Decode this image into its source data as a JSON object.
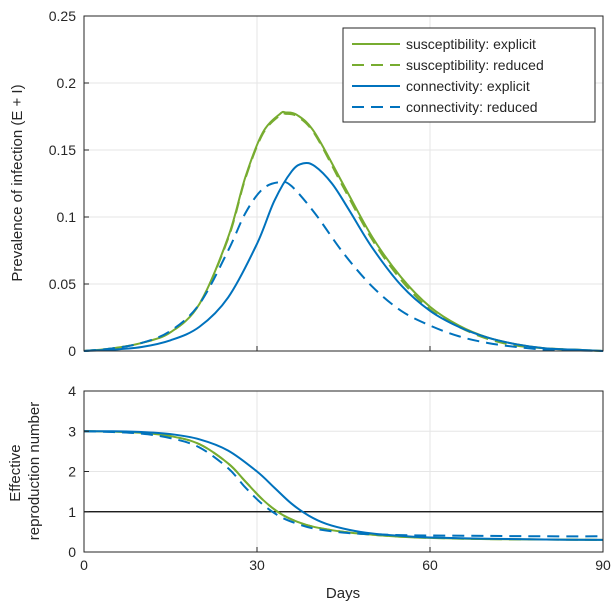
{
  "chart_data": [
    {
      "type": "line",
      "xlabel": "",
      "ylabel": "Prevalence of infection (E + I)",
      "xlim": [
        0,
        90
      ],
      "ylim": [
        0,
        0.25
      ],
      "xticks": [
        0,
        30,
        60,
        90
      ],
      "yticks": [
        0,
        0.05,
        0.1,
        0.15,
        0.2,
        0.25
      ],
      "ytick_labels": [
        "0",
        "0.05",
        "0.1",
        "0.15",
        "0.2",
        "0.25"
      ],
      "xtick_labels": [
        "",
        "",
        "",
        ""
      ],
      "grid": true,
      "legend_position": "top-right",
      "series": [
        {
          "name": "susceptibility: explicit",
          "color": "#77ac30",
          "dash": "solid",
          "x": [
            0,
            5,
            10,
            15,
            20,
            25,
            28,
            31,
            34,
            35,
            37,
            40,
            45,
            50,
            55,
            60,
            65,
            70,
            75,
            80,
            85,
            90
          ],
          "y": [
            0.0,
            0.002,
            0.006,
            0.014,
            0.035,
            0.085,
            0.13,
            0.163,
            0.177,
            0.178,
            0.176,
            0.163,
            0.124,
            0.085,
            0.055,
            0.033,
            0.019,
            0.01,
            0.005,
            0.002,
            0.001,
            0.0
          ]
        },
        {
          "name": "susceptibility: reduced",
          "color": "#77ac30",
          "dash": "dashed",
          "x": [
            0,
            5,
            10,
            15,
            20,
            25,
            28,
            31,
            34,
            35,
            37,
            40,
            45,
            50,
            55,
            60,
            65,
            70,
            75,
            80,
            85,
            90
          ],
          "y": [
            0.0,
            0.002,
            0.006,
            0.014,
            0.035,
            0.084,
            0.129,
            0.162,
            0.176,
            0.177,
            0.175,
            0.162,
            0.122,
            0.083,
            0.053,
            0.031,
            0.018,
            0.009,
            0.004,
            0.002,
            0.001,
            0.0
          ]
        },
        {
          "name": "connectivity: explicit",
          "color": "#0072bd",
          "dash": "solid",
          "x": [
            0,
            5,
            10,
            15,
            20,
            25,
            30,
            33,
            36,
            38,
            40,
            43,
            46,
            50,
            55,
            60,
            65,
            70,
            75,
            80,
            85,
            90
          ],
          "y": [
            0.0,
            0.001,
            0.003,
            0.008,
            0.018,
            0.04,
            0.08,
            0.112,
            0.134,
            0.14,
            0.138,
            0.125,
            0.105,
            0.077,
            0.049,
            0.03,
            0.018,
            0.01,
            0.005,
            0.002,
            0.001,
            0.0
          ]
        },
        {
          "name": "connectivity: reduced",
          "color": "#0072bd",
          "dash": "dashed",
          "x": [
            0,
            5,
            10,
            15,
            20,
            25,
            28,
            31,
            34,
            36,
            40,
            45,
            50,
            55,
            60,
            65,
            70,
            75,
            80,
            85,
            90
          ],
          "y": [
            0.0,
            0.002,
            0.006,
            0.015,
            0.035,
            0.075,
            0.103,
            0.121,
            0.126,
            0.123,
            0.103,
            0.073,
            0.048,
            0.03,
            0.019,
            0.011,
            0.006,
            0.003,
            0.001,
            0.0005,
            0.0
          ]
        }
      ]
    },
    {
      "type": "line",
      "xlabel": "Days",
      "ylabel": "Effective reproduction number",
      "ylabel_lines": [
        "Effective",
        "reproduction number"
      ],
      "xlim": [
        0,
        90
      ],
      "ylim": [
        0,
        4
      ],
      "xticks": [
        0,
        30,
        60,
        90
      ],
      "xtick_labels": [
        "0",
        "30",
        "60",
        "90"
      ],
      "yticks": [
        0,
        1,
        2,
        3,
        4
      ],
      "ytick_labels": [
        "0",
        "1",
        "2",
        "3",
        "4"
      ],
      "grid": true,
      "reference_line": {
        "y": 1,
        "color": "#000000"
      },
      "series": [
        {
          "name": "susceptibility: explicit",
          "color": "#77ac30",
          "dash": "solid",
          "x": [
            0,
            5,
            10,
            15,
            20,
            25,
            28,
            31,
            34,
            37,
            40,
            45,
            50,
            55,
            60,
            70,
            80,
            90
          ],
          "y": [
            3.0,
            2.99,
            2.96,
            2.88,
            2.68,
            2.2,
            1.75,
            1.3,
            0.96,
            0.75,
            0.62,
            0.5,
            0.43,
            0.38,
            0.35,
            0.32,
            0.31,
            0.3
          ]
        },
        {
          "name": "susceptibility: reduced",
          "color": "#77ac30",
          "dash": "dashed",
          "x": [
            0,
            5,
            10,
            15,
            20,
            25,
            28,
            31,
            34,
            37,
            40,
            45,
            50,
            55,
            60,
            70,
            80,
            90
          ],
          "y": [
            3.0,
            2.99,
            2.96,
            2.88,
            2.68,
            2.2,
            1.75,
            1.3,
            0.96,
            0.75,
            0.62,
            0.5,
            0.43,
            0.38,
            0.35,
            0.32,
            0.31,
            0.3
          ]
        },
        {
          "name": "connectivity: explicit",
          "color": "#0072bd",
          "dash": "solid",
          "x": [
            0,
            5,
            10,
            15,
            20,
            25,
            30,
            33,
            36,
            39,
            42,
            46,
            50,
            55,
            60,
            70,
            80,
            90
          ],
          "y": [
            3.0,
            3.0,
            2.98,
            2.93,
            2.8,
            2.52,
            2.0,
            1.6,
            1.2,
            0.9,
            0.7,
            0.55,
            0.46,
            0.4,
            0.36,
            0.33,
            0.31,
            0.3
          ]
        },
        {
          "name": "connectivity: reduced",
          "color": "#0072bd",
          "dash": "dashed",
          "x": [
            0,
            5,
            10,
            15,
            20,
            25,
            28,
            31,
            34,
            37,
            40,
            45,
            50,
            55,
            60,
            70,
            80,
            90
          ],
          "y": [
            3.0,
            2.98,
            2.94,
            2.83,
            2.6,
            2.08,
            1.6,
            1.18,
            0.88,
            0.7,
            0.58,
            0.48,
            0.44,
            0.42,
            0.41,
            0.4,
            0.39,
            0.39
          ]
        }
      ]
    }
  ]
}
